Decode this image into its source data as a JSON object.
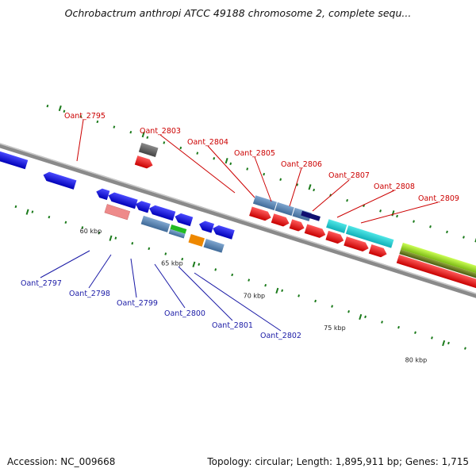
{
  "title": "Ochrobactrum anthropi ATCC 49188 chromosome 2, complete sequ...",
  "footer": {
    "accession": "Accession: NC_009668",
    "topology": "Topology: circular; Length: 1,895,911 bp; Genes: 1,715"
  },
  "scale_labels": [
    "60 kbp",
    "65 kbp",
    "70 kbp",
    "75 kbp",
    "80 kbp"
  ],
  "labels_top": [
    "Oant_2795",
    "Oant_2803",
    "Oant_2804",
    "Oant_2805",
    "Oant_2806",
    "Oant_2807",
    "Oant_2808",
    "Oant_2809"
  ],
  "labels_bottom": [
    "Oant_2797",
    "Oant_2798",
    "Oant_2799",
    "Oant_2800",
    "Oant_2801",
    "Oant_2802"
  ],
  "colors": {
    "forward_cds": "#ee1111",
    "reverse_cds": "#1111ee",
    "label_forward": "#cc0000",
    "label_reverse": "#1a1aa6",
    "backbone": "#888888",
    "tick": "#1a7a1a"
  }
}
